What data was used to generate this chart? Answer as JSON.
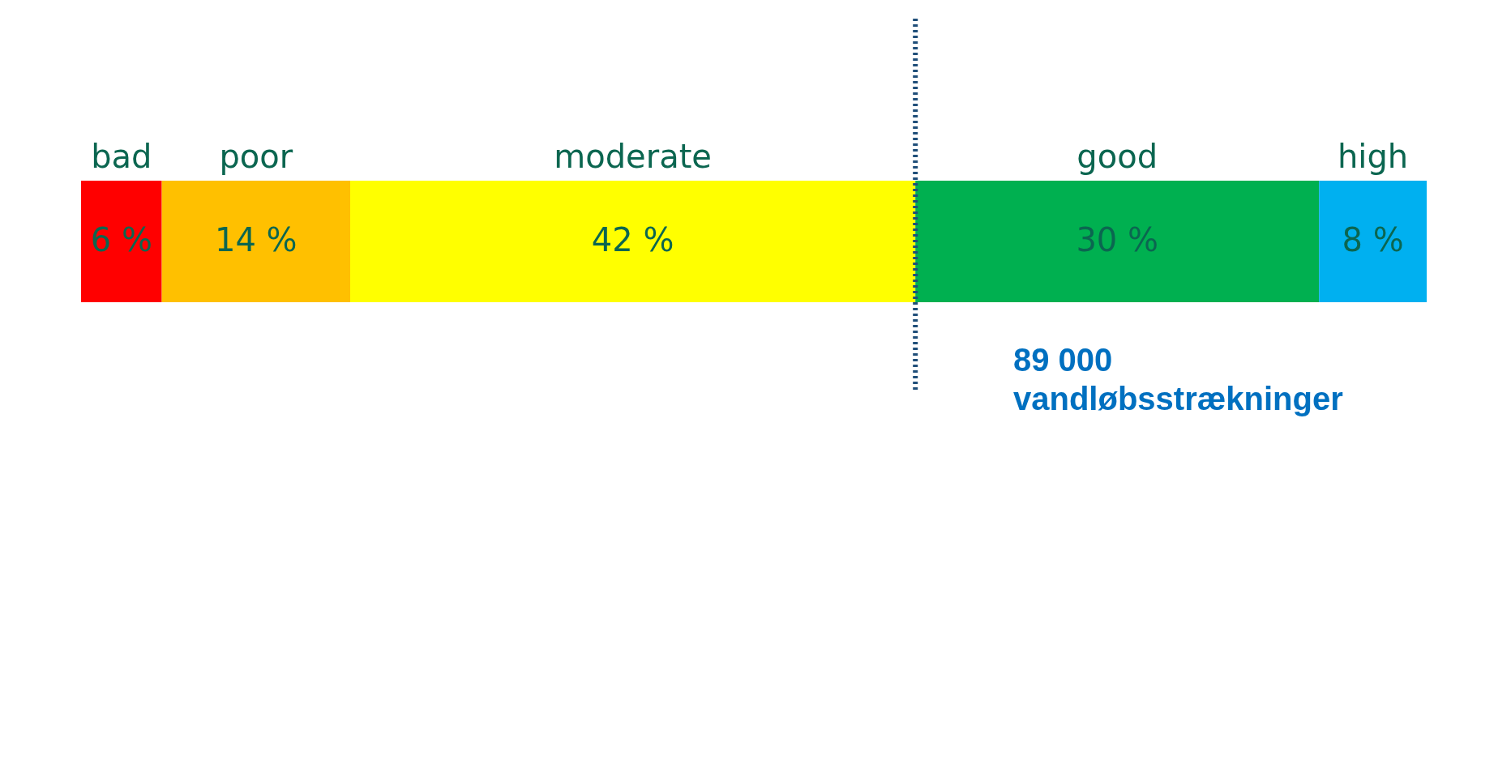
{
  "chart_data": {
    "type": "bar",
    "orientation": "horizontal",
    "stacked": true,
    "categories": [
      null
    ],
    "series": [
      {
        "name": "bad",
        "color": "#ff0000",
        "values": [
          6
        ],
        "value_labels": [
          "6 %"
        ]
      },
      {
        "name": "poor",
        "color": "#ffc000",
        "values": [
          14
        ],
        "value_labels": [
          "14 %"
        ]
      },
      {
        "name": "moderate",
        "color": "#ffff00",
        "values": [
          42
        ],
        "value_labels": [
          "42 %"
        ]
      },
      {
        "name": "good",
        "color": "#00b050",
        "values": [
          30
        ],
        "value_labels": [
          "30 %"
        ]
      },
      {
        "name": "high",
        "color": "#00b0f0",
        "values": [
          8
        ],
        "value_labels": [
          "8 %"
        ]
      }
    ],
    "ref_lines": [
      {
        "axis": "x",
        "value": 62,
        "color": "#1f4e79",
        "line_style": "dotted"
      }
    ],
    "annotations": [
      "89 000 vandløbsstrækninger"
    ]
  }
}
